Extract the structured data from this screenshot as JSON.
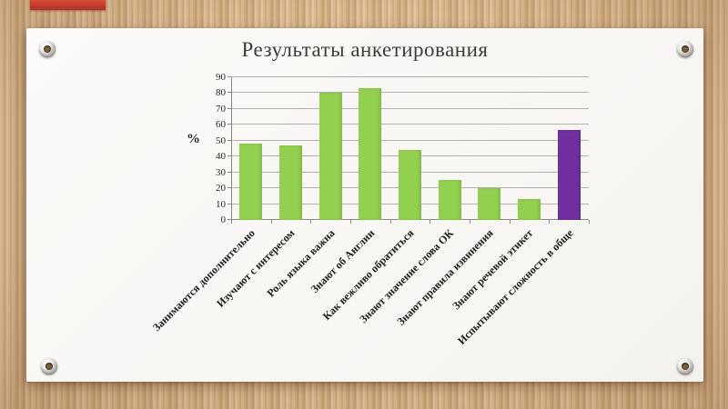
{
  "slide": {
    "title": "Результаты анкетирования"
  },
  "chart_data": {
    "type": "bar",
    "title": "Результаты анкетирования",
    "ylabel": "%",
    "xlabel": "",
    "categories": [
      "Занимаются дополнительно",
      "Изучают с интересом",
      "Роль языка важна",
      "Знают об Англии",
      "Как вежливо обратиться",
      "Знают значение слова ОК",
      "Знают правила извинения",
      "Знают речевой этикет",
      "Испытывают сложность в обще"
    ],
    "values": [
      48,
      47,
      80,
      83,
      44,
      25,
      20,
      13,
      57
    ],
    "bar_colors": [
      "#92d050",
      "#92d050",
      "#92d050",
      "#92d050",
      "#92d050",
      "#92d050",
      "#92d050",
      "#92d050",
      "#7030a0"
    ],
    "ylim": [
      0,
      90
    ],
    "ytick_step": 10,
    "grid": true,
    "legend_position": "none"
  },
  "theme": {
    "background_tan": "#d7b288",
    "slide_bg": "#faf9f6",
    "ribbon_red": "#c23a2b",
    "green": "#92d050",
    "purple": "#7030a0",
    "gridline": "#b3b1ae"
  }
}
